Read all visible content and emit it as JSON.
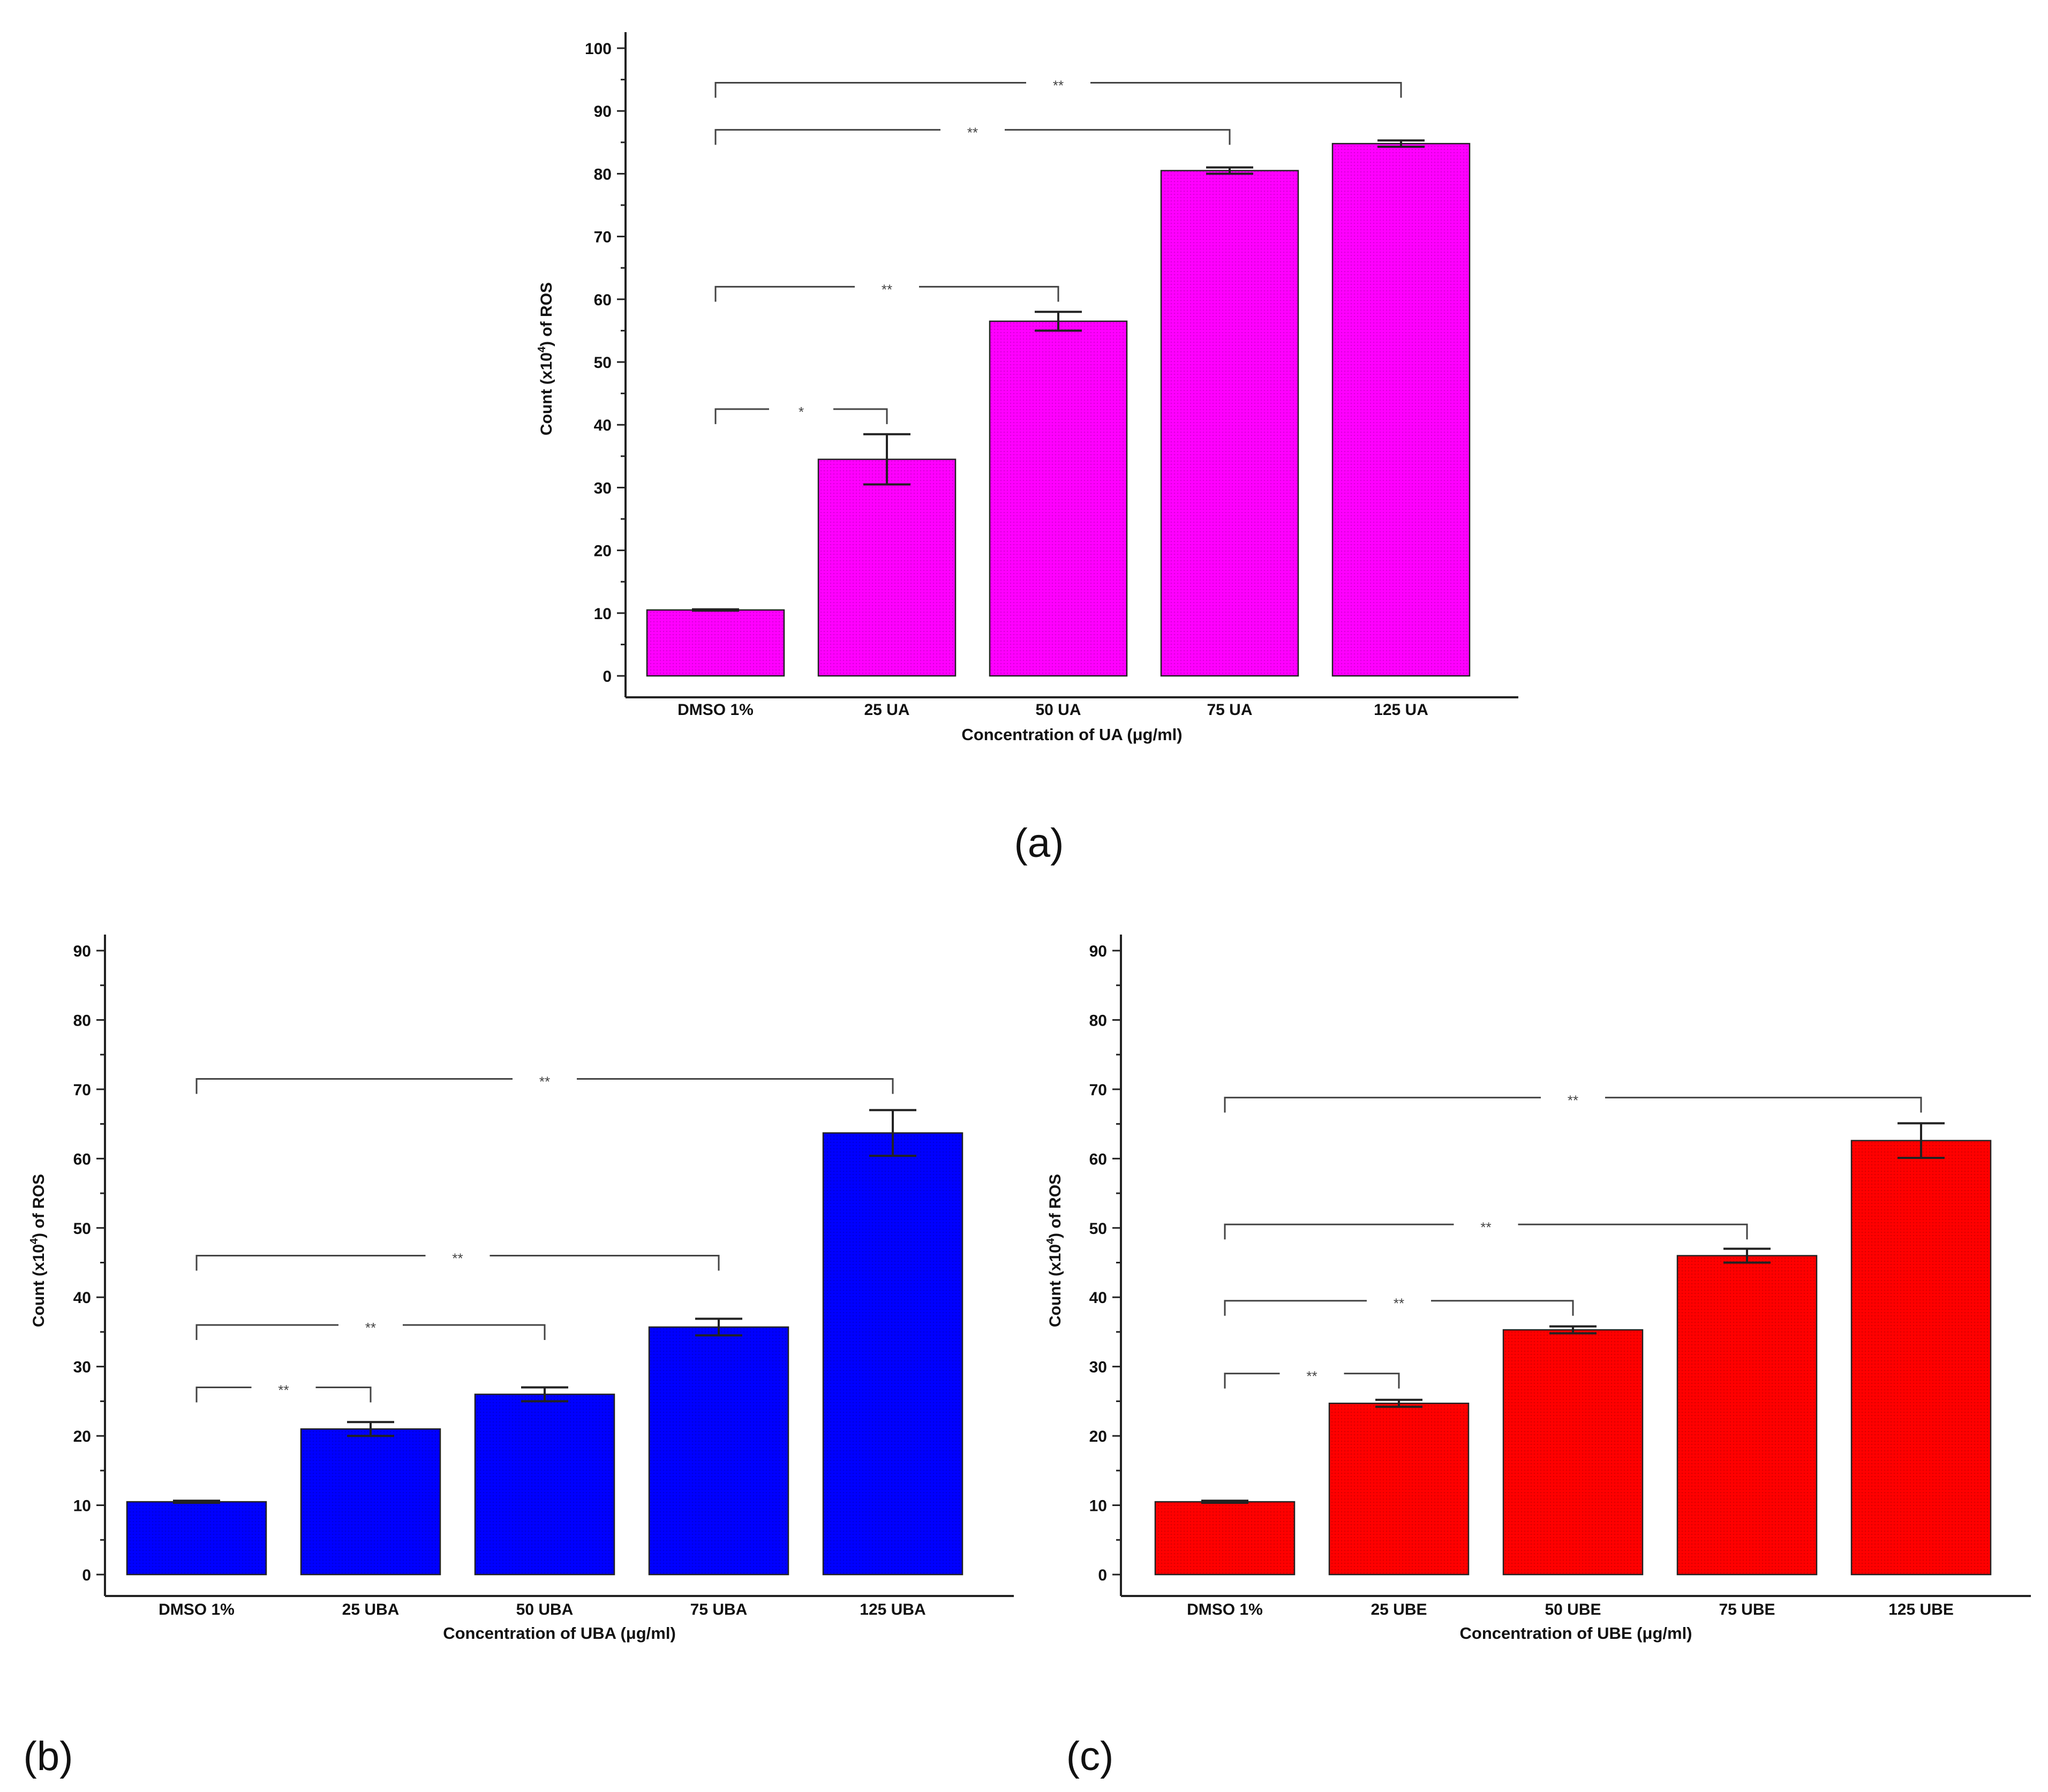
{
  "figure": {
    "panel_labels": [
      "(a)",
      "(b)",
      "(c)"
    ]
  },
  "chart_data": [
    {
      "panel": "(a)",
      "type": "bar",
      "color": "#ff00ff",
      "categories": [
        "DMSO 1%",
        "25 UA",
        "50 UA",
        "75 UA",
        "125 UA"
      ],
      "values": [
        10.5,
        34.5,
        56.5,
        80.5,
        84.8
      ],
      "errors": [
        0.1,
        4.0,
        1.5,
        0.5,
        0.5
      ],
      "xlabel": "Concentration of UA (μg/ml)",
      "ylabel": {
        "prefix": "Count (x10",
        "sup": "4",
        "suffix": ") of ROS"
      },
      "ylim": [
        0,
        100
      ],
      "yticks": [
        0,
        10,
        20,
        30,
        40,
        50,
        60,
        70,
        80,
        90,
        100
      ],
      "significance": [
        {
          "from": 0,
          "to": 1,
          "y": 42.5,
          "label": "*"
        },
        {
          "from": 0,
          "to": 2,
          "y": 62,
          "label": "**"
        },
        {
          "from": 0,
          "to": 3,
          "y": 87,
          "label": "**"
        },
        {
          "from": 0,
          "to": 4,
          "y": 94.5,
          "label": "**"
        }
      ]
    },
    {
      "panel": "(b)",
      "type": "bar",
      "color": "#0000ff",
      "categories": [
        "DMSO 1%",
        "25 UBA",
        "50 UBA",
        "75 UBA",
        "125 UBA"
      ],
      "values": [
        10.5,
        21.0,
        26.0,
        35.7,
        63.7
      ],
      "errors": [
        0.15,
        1.0,
        1.0,
        1.2,
        3.3
      ],
      "xlabel": "Concentration of UBA (μg/ml)",
      "ylabel": {
        "prefix": "Count (x10",
        "sup": "4",
        "suffix": ") of ROS"
      },
      "ylim": [
        0,
        90
      ],
      "yticks": [
        0,
        10,
        20,
        30,
        40,
        50,
        60,
        70,
        80,
        90
      ],
      "significance": [
        {
          "from": 0,
          "to": 1,
          "y": 27,
          "label": "**"
        },
        {
          "from": 0,
          "to": 2,
          "y": 36,
          "label": "**"
        },
        {
          "from": 0,
          "to": 3,
          "y": 46,
          "label": "**"
        },
        {
          "from": 0,
          "to": 4,
          "y": 71.5,
          "label": "**"
        }
      ]
    },
    {
      "panel": "(c)",
      "type": "bar",
      "color": "#ff0000",
      "categories": [
        "DMSO 1%",
        "25 UBE",
        "50 UBE",
        "75 UBE",
        "125 UBE"
      ],
      "values": [
        10.5,
        24.7,
        35.3,
        46.0,
        62.6
      ],
      "errors": [
        0.15,
        0.5,
        0.5,
        1.0,
        2.5
      ],
      "xlabel": "Concentration of UBE (μg/ml)",
      "ylabel": {
        "prefix": "Count (x10",
        "sup": "4",
        "suffix": ") of ROS"
      },
      "ylim": [
        0,
        90
      ],
      "yticks": [
        0,
        10,
        20,
        30,
        40,
        50,
        60,
        70,
        80,
        90
      ],
      "significance": [
        {
          "from": 0,
          "to": 1,
          "y": 29,
          "label": "**"
        },
        {
          "from": 0,
          "to": 2,
          "y": 39.5,
          "label": "**"
        },
        {
          "from": 0,
          "to": 3,
          "y": 50.5,
          "label": "**"
        },
        {
          "from": 0,
          "to": 4,
          "y": 68.8,
          "label": "**"
        }
      ]
    }
  ]
}
